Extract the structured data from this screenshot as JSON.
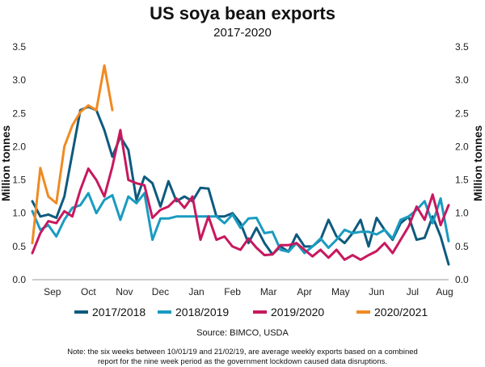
{
  "chart_data": {
    "type": "line",
    "title": "US soya bean exports",
    "subtitle": "2017-2020",
    "ylabel_left": "Million tonnes",
    "ylabel_right": "Million tonnes",
    "ylim": [
      0,
      3.5
    ],
    "yticks": [
      "0.0",
      "0.5",
      "1.0",
      "1.5",
      "2.0",
      "2.5",
      "3.0",
      "3.5"
    ],
    "xlim": [
      0,
      52
    ],
    "month_labels": [
      {
        "label": "Sep",
        "week": 2.5
      },
      {
        "label": "Oct",
        "week": 7
      },
      {
        "label": "Nov",
        "week": 11.5
      },
      {
        "label": "Dec",
        "week": 16
      },
      {
        "label": "Jan",
        "week": 20.5
      },
      {
        "label": "Feb",
        "week": 25
      },
      {
        "label": "Mar",
        "week": 29.5
      },
      {
        "label": "Apr",
        "week": 34
      },
      {
        "label": "May",
        "week": 38.5
      },
      {
        "label": "Jun",
        "week": 43
      },
      {
        "label": "Jul",
        "week": 47.5
      },
      {
        "label": "Aug",
        "week": 51.5
      }
    ],
    "grid": false,
    "legend_position": "bottom",
    "series": [
      {
        "name": "2017/2018",
        "color": "#0e5a7e",
        "values": [
          1.18,
          0.95,
          0.98,
          0.93,
          1.25,
          1.9,
          2.55,
          2.6,
          2.55,
          2.25,
          1.85,
          2.15,
          1.95,
          1.2,
          1.55,
          1.45,
          1.1,
          1.48,
          1.18,
          1.25,
          1.18,
          1.38,
          1.37,
          0.95,
          0.95,
          1.0,
          0.85,
          0.55,
          0.78,
          0.55,
          0.38,
          0.5,
          0.42,
          0.68,
          0.5,
          0.5,
          0.6,
          0.9,
          0.65,
          0.55,
          0.7,
          0.9,
          0.5,
          0.93,
          0.75,
          0.6,
          0.85,
          0.95,
          0.6,
          0.63,
          0.95,
          0.65,
          0.23
        ]
      },
      {
        "name": "2018/2019",
        "color": "#1a9bc0",
        "values": [
          1.03,
          0.75,
          0.82,
          0.65,
          0.9,
          1.08,
          1.12,
          1.3,
          1.0,
          1.2,
          1.27,
          0.9,
          1.25,
          1.15,
          1.3,
          0.6,
          0.92,
          0.92,
          0.95,
          0.95,
          0.95,
          0.95,
          0.95,
          0.95,
          0.85,
          0.98,
          0.78,
          0.92,
          0.93,
          0.7,
          0.72,
          0.45,
          0.42,
          0.55,
          0.4,
          0.5,
          0.62,
          0.48,
          0.6,
          0.75,
          0.7,
          0.72,
          0.72,
          0.68,
          0.75,
          0.62,
          0.9,
          0.95,
          1.05,
          1.18,
          0.85,
          1.22,
          0.58
        ]
      },
      {
        "name": "2019/2020",
        "color": "#c8185e",
        "values": [
          0.4,
          0.7,
          0.88,
          0.85,
          1.03,
          0.95,
          1.35,
          1.67,
          1.5,
          1.25,
          1.7,
          2.25,
          1.5,
          1.45,
          1.42,
          0.93,
          1.05,
          1.1,
          1.22,
          1.08,
          1.25,
          0.6,
          0.95,
          0.6,
          0.65,
          0.5,
          0.45,
          0.62,
          0.48,
          0.37,
          0.38,
          0.52,
          0.52,
          0.55,
          0.45,
          0.35,
          0.45,
          0.33,
          0.45,
          0.3,
          0.37,
          0.3,
          0.37,
          0.43,
          0.55,
          0.4,
          0.6,
          0.8,
          1.1,
          0.9,
          1.28,
          0.82,
          1.12
        ]
      },
      {
        "name": "2020/2021",
        "color": "#f08a22",
        "values": [
          0.55,
          1.68,
          1.25,
          1.15,
          2.0,
          2.32,
          2.52,
          2.62,
          2.55,
          3.22,
          2.55
        ]
      }
    ],
    "source": "Source: BIMCO, USDA",
    "note_line1": "Note: the six weeks between 10/01/19 and 21/02/19, are average weekly exports based on a combined",
    "note_line2": "report for the nine week period as the government lockdown caused data disruptions."
  }
}
